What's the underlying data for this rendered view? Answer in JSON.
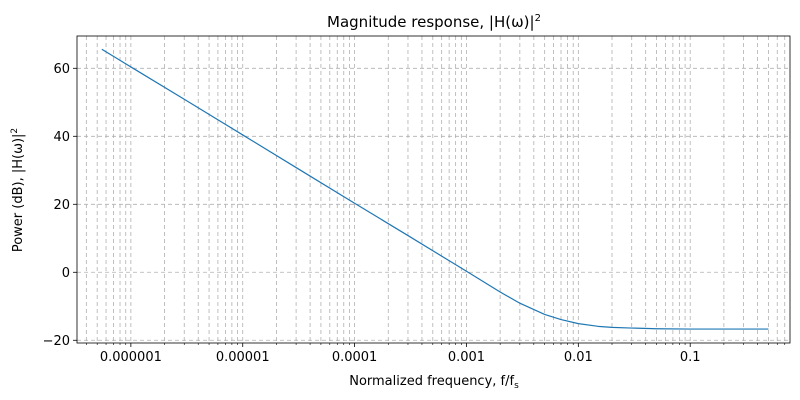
{
  "chart_data": {
    "type": "line",
    "title": "Magnitude response, |H(ω)|",
    "title_sup": "2",
    "xlabel": "Normalized frequency, f/f",
    "xlabel_sub": "s",
    "ylabel": "Power (dB), |H(ω)|",
    "ylabel_sup": "2",
    "xscale": "log",
    "xlim": [
      3.3e-07,
      0.78
    ],
    "ylim": [
      -20.8,
      69.5
    ],
    "grid": true,
    "x_ticks": [
      {
        "value": 1e-06,
        "label": "0.000001"
      },
      {
        "value": 1e-05,
        "label": "0.00001"
      },
      {
        "value": 0.0001,
        "label": "0.0001"
      },
      {
        "value": 0.001,
        "label": "0.001"
      },
      {
        "value": 0.01,
        "label": "0.01"
      },
      {
        "value": 0.1,
        "label": "0.1"
      }
    ],
    "y_ticks": [
      {
        "value": -20,
        "label": "−20"
      },
      {
        "value": 0,
        "label": "0"
      },
      {
        "value": 20,
        "label": "20"
      },
      {
        "value": 40,
        "label": "40"
      },
      {
        "value": 60,
        "label": "60"
      }
    ],
    "series": [
      {
        "color": "#1f77b4",
        "x": [
          5.5e-07,
          1e-06,
          3e-06,
          1e-05,
          3e-05,
          0.0001,
          0.0003,
          0.001,
          0.002,
          0.003,
          0.005,
          0.007,
          0.01,
          0.015,
          0.02,
          0.03,
          0.05,
          0.1,
          0.2,
          0.5
        ],
        "y": [
          65.6,
          60.4,
          50.9,
          40.4,
          30.8,
          20.3,
          10.8,
          0.3,
          -5.8,
          -9.1,
          -12.4,
          -13.9,
          -15.1,
          -15.9,
          -16.2,
          -16.4,
          -16.6,
          -16.7,
          -16.7,
          -16.7
        ]
      }
    ]
  },
  "colors": {
    "line": "#1f77b4",
    "grid": "#b0b0b0",
    "axes": "#000000"
  }
}
